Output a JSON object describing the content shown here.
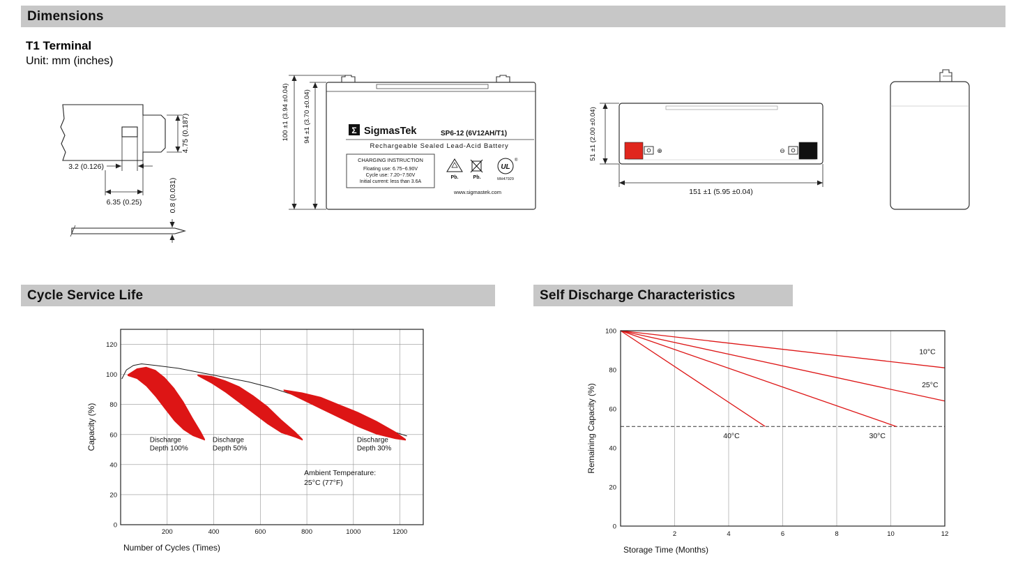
{
  "sections": {
    "dimensions": "Dimensions",
    "cycle_life": "Cycle Service Life",
    "self_discharge": "Self Discharge Characteristics"
  },
  "dimensions_block": {
    "terminal_type": "T1 Terminal",
    "unit": "Unit: mm (inches)",
    "terminal_detail": {
      "height": "4.75 (0.187)",
      "hole_width": "3.2 (0.126)",
      "width": "6.35 (0.25)",
      "thickness": "0.8 (0.031)"
    },
    "front_view": {
      "overall_height": "100 ±1 (3.94 ±0.04)",
      "case_height": "94 ±1 (3.70 ±0.04)",
      "label": {
        "brand_glyph": "Σ",
        "brand": "SigmasTek",
        "model": "SP6-12 (6V12AH/T1)",
        "type_line": "Rechargeable Sealed Lead-Acid Battery",
        "charging_title": "CHARGING INSTRUCTION",
        "charging_lines": [
          "Floating use: 6.75~6.90V",
          "Cycle use: 7.20~7.50V",
          "Initial current: less than 3.6A"
        ],
        "pb1": "Pb.",
        "pb2": "Pb.",
        "ul_mark": "UL",
        "ul_reg": "®",
        "ul_code": "MH47929",
        "website": "www.sigmastek.com"
      }
    },
    "top_view": {
      "width_dim": "51 ±1 (2.00 ±0.04)",
      "length_dim": "151 ±1 (5.95 ±0.04)",
      "plus_symbol": "⊕",
      "minus_symbol": "⊖"
    }
  },
  "chart_data": [
    {
      "type": "area",
      "title": "Cycle Service Life",
      "xlabel": "Number of Cycles (Times)",
      "ylabel": "Capacity (%)",
      "xlim": [
        0,
        1300
      ],
      "ylim": [
        0,
        130
      ],
      "xticks": [
        200,
        400,
        600,
        800,
        1000,
        1200
      ],
      "yticks": [
        0,
        20,
        40,
        60,
        80,
        100,
        120
      ],
      "grid": true,
      "band_color": "#dd1515",
      "envelope": [
        [
          5,
          97
        ],
        [
          25,
          103
        ],
        [
          55,
          106
        ],
        [
          90,
          107
        ],
        [
          150,
          106
        ],
        [
          250,
          104
        ],
        [
          350,
          101
        ],
        [
          450,
          98
        ],
        [
          550,
          95
        ],
        [
          650,
          91
        ],
        [
          750,
          86
        ],
        [
          850,
          81
        ],
        [
          950,
          75
        ],
        [
          1050,
          69
        ],
        [
          1150,
          63
        ],
        [
          1230,
          59
        ]
      ],
      "bands": [
        {
          "label_lines": [
            "Discharge",
            "Depth 100%"
          ],
          "label_x": 125,
          "label_y": 55,
          "upper": [
            [
              30,
              100
            ],
            [
              70,
              104
            ],
            [
              110,
              105
            ],
            [
              150,
              103
            ],
            [
              190,
              98
            ],
            [
              230,
              91
            ],
            [
              270,
              82
            ],
            [
              310,
              71
            ],
            [
              345,
              62
            ],
            [
              362,
              57
            ]
          ],
          "lower": [
            [
              30,
              99
            ],
            [
              70,
              97
            ],
            [
              110,
              92
            ],
            [
              150,
              85
            ],
            [
              190,
              77
            ],
            [
              230,
              69
            ],
            [
              270,
              63
            ],
            [
              310,
              59
            ],
            [
              345,
              57
            ],
            [
              362,
              56
            ]
          ]
        },
        {
          "label_lines": [
            "Discharge",
            "Depth 50%"
          ],
          "label_x": 395,
          "label_y": 55,
          "upper": [
            [
              330,
              100
            ],
            [
              390,
              99
            ],
            [
              450,
              96
            ],
            [
              510,
              92
            ],
            [
              570,
              86
            ],
            [
              630,
              79
            ],
            [
              690,
              70
            ],
            [
              750,
              62
            ],
            [
              782,
              57
            ]
          ],
          "lower": [
            [
              330,
              99
            ],
            [
              390,
              94
            ],
            [
              450,
              88
            ],
            [
              510,
              81
            ],
            [
              570,
              74
            ],
            [
              630,
              67
            ],
            [
              690,
              61
            ],
            [
              750,
              58
            ],
            [
              782,
              56
            ]
          ]
        },
        {
          "label_lines": [
            "Discharge",
            "Depth 30%"
          ],
          "label_x": 1015,
          "label_y": 55,
          "upper": [
            [
              700,
              90
            ],
            [
              780,
              88
            ],
            [
              860,
              85
            ],
            [
              940,
              80
            ],
            [
              1020,
              75
            ],
            [
              1100,
              69
            ],
            [
              1180,
              62
            ],
            [
              1225,
              57
            ]
          ],
          "lower": [
            [
              700,
              89
            ],
            [
              780,
              83
            ],
            [
              860,
              77
            ],
            [
              940,
              71
            ],
            [
              1020,
              65
            ],
            [
              1100,
              60
            ],
            [
              1180,
              57
            ],
            [
              1225,
              56
            ]
          ]
        }
      ],
      "annotation_lines": [
        "Ambient Temperature:",
        "25°C (77°F)"
      ],
      "annotation_x": 788,
      "annotation_y": 33
    },
    {
      "type": "line",
      "title": "Self Discharge Characteristics",
      "xlabel": "Storage Time (Months)",
      "ylabel": "Remaining Capacity (%)",
      "xlim": [
        0,
        12
      ],
      "ylim": [
        0,
        100
      ],
      "xticks": [
        2,
        4,
        6,
        8,
        10,
        12
      ],
      "yticks": [
        0,
        20,
        40,
        60,
        80,
        100
      ],
      "grid": "vertical-only",
      "line_color": "#dd1515",
      "dashed_y": 51,
      "series": [
        {
          "name": "10°C",
          "points": [
            [
              0,
              100
            ],
            [
              12,
              81
            ]
          ],
          "label_x": 11.05,
          "label_y": 88
        },
        {
          "name": "25°C",
          "points": [
            [
              0,
              100
            ],
            [
              12,
              64
            ]
          ],
          "label_x": 11.15,
          "label_y": 71
        },
        {
          "name": "30°C",
          "points": [
            [
              0,
              100
            ],
            [
              10.2,
              51
            ]
          ],
          "label_x": 9.2,
          "label_y": 45
        },
        {
          "name": "40°C",
          "points": [
            [
              0,
              100
            ],
            [
              5.35,
              51
            ]
          ],
          "label_x": 3.8,
          "label_y": 45
        }
      ]
    }
  ]
}
